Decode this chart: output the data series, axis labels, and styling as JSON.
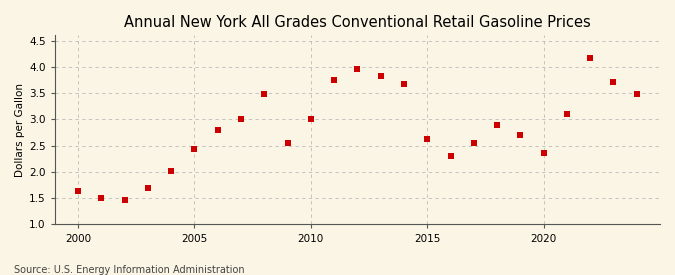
{
  "title": "Annual New York All Grades Conventional Retail Gasoline Prices",
  "ylabel": "Dollars per Gallon",
  "source": "Source: U.S. Energy Information Administration",
  "years": [
    2000,
    2001,
    2002,
    2003,
    2004,
    2005,
    2006,
    2007,
    2008,
    2009,
    2010,
    2011,
    2012,
    2013,
    2014,
    2015,
    2016,
    2017,
    2018,
    2019,
    2020,
    2021,
    2022,
    2023,
    2024
  ],
  "values": [
    1.63,
    1.51,
    1.47,
    1.69,
    2.01,
    2.44,
    2.8,
    3.01,
    3.49,
    2.55,
    3.0,
    3.75,
    3.95,
    3.82,
    3.67,
    2.63,
    2.3,
    2.56,
    2.89,
    2.71,
    2.36,
    3.1,
    4.16,
    3.71,
    3.48
  ],
  "marker_color": "#cc0000",
  "marker_size": 18,
  "bg_color": "#faf5e4",
  "grid_color": "#bbbbbb",
  "vline_color": "#bbbbbb",
  "spine_color": "#555555",
  "ylim": [
    1.0,
    4.6
  ],
  "xlim": [
    1999.0,
    2025.0
  ],
  "yticks": [
    1.0,
    1.5,
    2.0,
    2.5,
    3.0,
    3.5,
    4.0,
    4.5
  ],
  "xticks": [
    2000,
    2005,
    2010,
    2015,
    2020
  ],
  "title_fontsize": 10.5,
  "ylabel_fontsize": 7.5,
  "tick_fontsize": 7.5,
  "source_fontsize": 7
}
